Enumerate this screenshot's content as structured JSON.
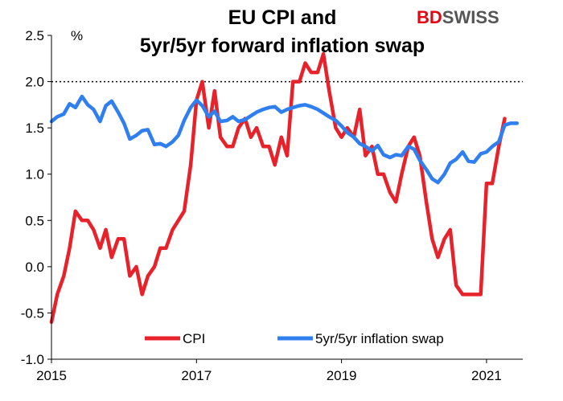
{
  "logo": {
    "part1": "BD",
    "part2": "SWISS",
    "color1": "#e30613",
    "color2": "#555555"
  },
  "chart_data": {
    "type": "line",
    "title_lines": [
      "EU CPI and",
      "5yr/5yr forward inflation swap"
    ],
    "ylabel": "%",
    "ylim": [
      -1.0,
      2.5
    ],
    "yticks": [
      "2.5",
      "2.0",
      "1.5",
      "1.0",
      "0.5",
      "0.0",
      "-0.5",
      "-1.0"
    ],
    "ytick_values": [
      2.5,
      2.0,
      1.5,
      1.0,
      0.5,
      0.0,
      -0.5,
      -1.0
    ],
    "xlim": [
      2015.0,
      2021.5
    ],
    "xticks": [
      "2015",
      "2017",
      "2019",
      "2021"
    ],
    "xtick_values": [
      2015,
      2017,
      2019,
      2021
    ],
    "reference_line": {
      "y": 2.0,
      "style": "dotted"
    },
    "legend_position": "bottom-center",
    "series": [
      {
        "name": "CPI",
        "color": "#e8222b",
        "points": [
          [
            2015.0,
            -0.6
          ],
          [
            2015.08,
            -0.3
          ],
          [
            2015.17,
            -0.1
          ],
          [
            2015.25,
            0.2
          ],
          [
            2015.33,
            0.6
          ],
          [
            2015.42,
            0.5
          ],
          [
            2015.5,
            0.5
          ],
          [
            2015.58,
            0.4
          ],
          [
            2015.67,
            0.2
          ],
          [
            2015.75,
            0.4
          ],
          [
            2015.83,
            0.1
          ],
          [
            2015.92,
            0.3
          ],
          [
            2016.0,
            0.3
          ],
          [
            2016.08,
            -0.1
          ],
          [
            2016.17,
            0.0
          ],
          [
            2016.25,
            -0.3
          ],
          [
            2016.33,
            -0.1
          ],
          [
            2016.42,
            0.0
          ],
          [
            2016.5,
            0.2
          ],
          [
            2016.58,
            0.2
          ],
          [
            2016.67,
            0.4
          ],
          [
            2016.75,
            0.5
          ],
          [
            2016.83,
            0.6
          ],
          [
            2016.92,
            1.1
          ],
          [
            2017.0,
            1.8
          ],
          [
            2017.08,
            2.0
          ],
          [
            2017.17,
            1.5
          ],
          [
            2017.25,
            1.9
          ],
          [
            2017.33,
            1.4
          ],
          [
            2017.42,
            1.3
          ],
          [
            2017.5,
            1.3
          ],
          [
            2017.58,
            1.5
          ],
          [
            2017.67,
            1.6
          ],
          [
            2017.75,
            1.4
          ],
          [
            2017.83,
            1.5
          ],
          [
            2017.92,
            1.3
          ],
          [
            2018.0,
            1.3
          ],
          [
            2018.08,
            1.1
          ],
          [
            2018.17,
            1.4
          ],
          [
            2018.25,
            1.2
          ],
          [
            2018.33,
            2.0
          ],
          [
            2018.42,
            2.0
          ],
          [
            2018.5,
            2.2
          ],
          [
            2018.58,
            2.1
          ],
          [
            2018.67,
            2.1
          ],
          [
            2018.75,
            2.3
          ],
          [
            2018.83,
            1.9
          ],
          [
            2018.92,
            1.5
          ],
          [
            2019.0,
            1.4
          ],
          [
            2019.08,
            1.5
          ],
          [
            2019.17,
            1.4
          ],
          [
            2019.25,
            1.7
          ],
          [
            2019.33,
            1.2
          ],
          [
            2019.42,
            1.3
          ],
          [
            2019.5,
            1.0
          ],
          [
            2019.58,
            1.0
          ],
          [
            2019.67,
            0.8
          ],
          [
            2019.75,
            0.7
          ],
          [
            2019.83,
            1.0
          ],
          [
            2019.92,
            1.3
          ],
          [
            2020.0,
            1.4
          ],
          [
            2020.08,
            1.2
          ],
          [
            2020.17,
            0.7
          ],
          [
            2020.25,
            0.3
          ],
          [
            2020.33,
            0.1
          ],
          [
            2020.42,
            0.3
          ],
          [
            2020.5,
            0.4
          ],
          [
            2020.58,
            -0.2
          ],
          [
            2020.67,
            -0.3
          ],
          [
            2020.75,
            -0.3
          ],
          [
            2020.83,
            -0.3
          ],
          [
            2020.92,
            -0.3
          ],
          [
            2021.0,
            0.9
          ],
          [
            2021.08,
            0.9
          ],
          [
            2021.17,
            1.3
          ],
          [
            2021.25,
            1.6
          ]
        ]
      },
      {
        "name": "5yr/5yr inflation swap",
        "color": "#2f7ff0",
        "points": [
          [
            2015.0,
            1.57
          ],
          [
            2015.08,
            1.62
          ],
          [
            2015.17,
            1.65
          ],
          [
            2015.25,
            1.76
          ],
          [
            2015.33,
            1.72
          ],
          [
            2015.42,
            1.84
          ],
          [
            2015.5,
            1.75
          ],
          [
            2015.58,
            1.7
          ],
          [
            2015.67,
            1.57
          ],
          [
            2015.75,
            1.74
          ],
          [
            2015.83,
            1.79
          ],
          [
            2015.92,
            1.67
          ],
          [
            2016.0,
            1.55
          ],
          [
            2016.08,
            1.38
          ],
          [
            2016.17,
            1.42
          ],
          [
            2016.25,
            1.47
          ],
          [
            2016.33,
            1.48
          ],
          [
            2016.42,
            1.32
          ],
          [
            2016.5,
            1.33
          ],
          [
            2016.58,
            1.3
          ],
          [
            2016.67,
            1.35
          ],
          [
            2016.75,
            1.42
          ],
          [
            2016.83,
            1.58
          ],
          [
            2016.92,
            1.72
          ],
          [
            2017.0,
            1.8
          ],
          [
            2017.08,
            1.74
          ],
          [
            2017.17,
            1.62
          ],
          [
            2017.25,
            1.68
          ],
          [
            2017.33,
            1.57
          ],
          [
            2017.42,
            1.58
          ],
          [
            2017.5,
            1.62
          ],
          [
            2017.58,
            1.57
          ],
          [
            2017.67,
            1.59
          ],
          [
            2017.75,
            1.63
          ],
          [
            2017.83,
            1.67
          ],
          [
            2017.92,
            1.7
          ],
          [
            2018.0,
            1.72
          ],
          [
            2018.08,
            1.73
          ],
          [
            2018.17,
            1.67
          ],
          [
            2018.25,
            1.7
          ],
          [
            2018.33,
            1.72
          ],
          [
            2018.42,
            1.74
          ],
          [
            2018.5,
            1.75
          ],
          [
            2018.58,
            1.73
          ],
          [
            2018.67,
            1.7
          ],
          [
            2018.75,
            1.66
          ],
          [
            2018.83,
            1.62
          ],
          [
            2018.92,
            1.58
          ],
          [
            2019.0,
            1.52
          ],
          [
            2019.08,
            1.45
          ],
          [
            2019.17,
            1.4
          ],
          [
            2019.25,
            1.33
          ],
          [
            2019.33,
            1.3
          ],
          [
            2019.42,
            1.25
          ],
          [
            2019.5,
            1.31
          ],
          [
            2019.58,
            1.21
          ],
          [
            2019.67,
            1.18
          ],
          [
            2019.75,
            1.21
          ],
          [
            2019.83,
            1.2
          ],
          [
            2019.92,
            1.3
          ],
          [
            2020.0,
            1.27
          ],
          [
            2020.08,
            1.15
          ],
          [
            2020.17,
            1.05
          ],
          [
            2020.25,
            0.95
          ],
          [
            2020.33,
            0.91
          ],
          [
            2020.42,
            1.0
          ],
          [
            2020.5,
            1.12
          ],
          [
            2020.58,
            1.16
          ],
          [
            2020.67,
            1.24
          ],
          [
            2020.75,
            1.14
          ],
          [
            2020.83,
            1.13
          ],
          [
            2020.92,
            1.22
          ],
          [
            2021.0,
            1.24
          ],
          [
            2021.08,
            1.3
          ],
          [
            2021.17,
            1.35
          ],
          [
            2021.25,
            1.53
          ],
          [
            2021.33,
            1.55
          ],
          [
            2021.42,
            1.55
          ]
        ]
      }
    ]
  }
}
